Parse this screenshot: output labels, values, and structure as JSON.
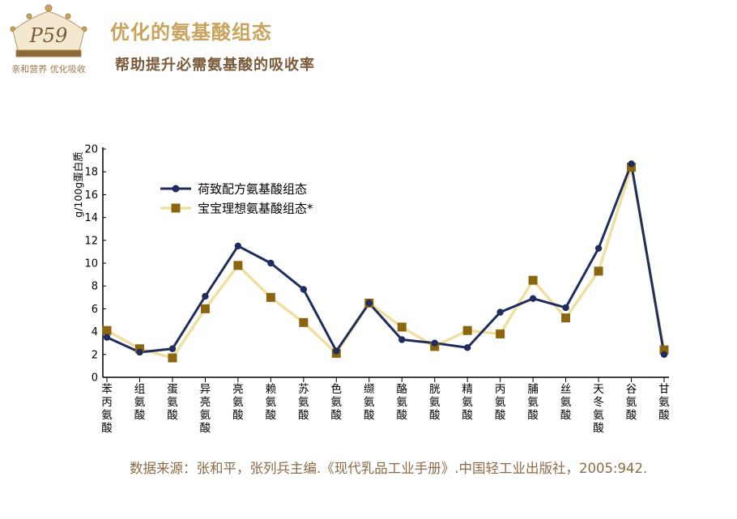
{
  "header": {
    "logo_text": "P59",
    "logo_caption": "亲和营养 优化吸收",
    "title": "优化的氨基酸组态",
    "subtitle": "帮助提升必需氨基酸的吸收率"
  },
  "footer": {
    "source": "数据来源：张和平，张列兵主编.《现代乳品工业手册》.中国轻工业出版社，2005:942."
  },
  "colors": {
    "series1": "#1f2d5c",
    "series2_line": "#f0dfa0",
    "series2_marker": "#8b6510",
    "axis": "#000000",
    "title": "#c9a25b"
  },
  "chart_data": {
    "type": "line",
    "ylabel": "g/100g蛋白质",
    "ylim": [
      0,
      20
    ],
    "yticks": [
      0,
      2,
      4,
      6,
      8,
      10,
      12,
      14,
      16,
      18,
      20
    ],
    "categories": [
      "苯丙氨酸",
      "组氨酸",
      "蛋氨酸",
      "异亮氨酸",
      "亮氨酸",
      "赖氨酸",
      "苏氨酸",
      "色氨酸",
      "缬氨酸",
      "酪氨酸",
      "胱氨酸",
      "精氨酸",
      "丙氨酸",
      "脯氨酸",
      "丝氨酸",
      "天冬氨酸",
      "谷氨酸",
      "甘氨酸"
    ],
    "legend_position": "top-left",
    "series": [
      {
        "name": "荷致配方氨基酸组态",
        "marker": "circle",
        "values": [
          3.5,
          2.2,
          2.5,
          7.1,
          11.5,
          10.0,
          7.7,
          2.3,
          6.5,
          3.3,
          3.0,
          2.6,
          5.7,
          6.9,
          6.1,
          11.3,
          18.7,
          2.0
        ]
      },
      {
        "name": "宝宝理想氨基酸组态*",
        "marker": "square",
        "values": [
          4.1,
          2.5,
          1.7,
          6.0,
          9.8,
          7.0,
          4.8,
          2.1,
          6.5,
          4.4,
          2.7,
          4.1,
          3.8,
          8.5,
          5.2,
          9.3,
          18.4,
          2.4
        ]
      }
    ]
  }
}
